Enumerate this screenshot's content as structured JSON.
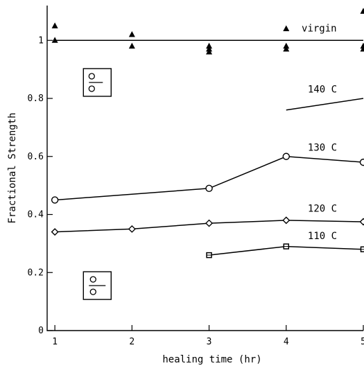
{
  "chart_data": {
    "type": "line",
    "title": "",
    "xlabel": "healing time (hr)",
    "ylabel": "Fractional Strength",
    "xlim": [
      0.9,
      5.0
    ],
    "ylim": [
      0,
      1.12
    ],
    "xticks": [
      1,
      2,
      3,
      4,
      5
    ],
    "yticks": [
      {
        "value": 0,
        "label": "0"
      },
      {
        "value": 0.2,
        "label": "0.2"
      },
      {
        "value": 0.4,
        "label": "0.4"
      },
      {
        "value": 0.6,
        "label": "0.6"
      },
      {
        "value": 0.8,
        "label": "0.8"
      },
      {
        "value": 1.0,
        "label": "1"
      }
    ],
    "grid": false,
    "series": [
      {
        "name": "virgin",
        "marker": "triangle",
        "line": {
          "x": [
            1,
            5
          ],
          "y": [
            1.0,
            1.0
          ]
        },
        "points": [
          {
            "x": 1,
            "y": 1.05
          },
          {
            "x": 1,
            "y": 1.0
          },
          {
            "x": 2,
            "y": 1.02
          },
          {
            "x": 2,
            "y": 0.98
          },
          {
            "x": 3,
            "y": 0.98
          },
          {
            "x": 3,
            "y": 0.97
          },
          {
            "x": 3,
            "y": 0.96
          },
          {
            "x": 4,
            "y": 1.04
          },
          {
            "x": 4,
            "y": 0.98
          },
          {
            "x": 4,
            "y": 0.97
          },
          {
            "x": 5,
            "y": 1.1
          },
          {
            "x": 5,
            "y": 0.98
          },
          {
            "x": 5,
            "y": 0.97
          }
        ]
      },
      {
        "name": "140 C",
        "marker": "none",
        "line": {
          "x": [
            4,
            5
          ],
          "y": [
            0.76,
            0.8
          ]
        },
        "points": []
      },
      {
        "name": "130 C",
        "marker": "circle",
        "line": {
          "x": [
            1,
            3,
            4,
            5
          ],
          "y": [
            0.45,
            0.49,
            0.6,
            0.58
          ]
        },
        "points": [
          {
            "x": 1,
            "y": 0.45
          },
          {
            "x": 3,
            "y": 0.49
          },
          {
            "x": 4,
            "y": 0.6
          },
          {
            "x": 5,
            "y": 0.58
          }
        ]
      },
      {
        "name": "120 C",
        "marker": "diamond",
        "line": {
          "x": [
            1,
            2,
            3,
            4,
            5
          ],
          "y": [
            0.34,
            0.35,
            0.37,
            0.38,
            0.375
          ]
        },
        "points": [
          {
            "x": 1,
            "y": 0.34
          },
          {
            "x": 2,
            "y": 0.35
          },
          {
            "x": 3,
            "y": 0.37
          },
          {
            "x": 4,
            "y": 0.38
          },
          {
            "x": 5,
            "y": 0.375
          }
        ]
      },
      {
        "name": "110 C",
        "marker": "square",
        "line": {
          "x": [
            3,
            4,
            5
          ],
          "y": [
            0.26,
            0.29,
            0.28
          ]
        },
        "points": [
          {
            "x": 3,
            "y": 0.26
          },
          {
            "x": 4,
            "y": 0.29
          },
          {
            "x": 5,
            "y": 0.28
          }
        ]
      }
    ],
    "series_labels": [
      {
        "series": "virgin",
        "x": 4.2,
        "y": 1.03
      },
      {
        "series": "140 C",
        "x": 4.28,
        "y": 0.82
      },
      {
        "series": "130 C",
        "x": 4.28,
        "y": 0.62
      },
      {
        "series": "120 C",
        "x": 4.28,
        "y": 0.41
      },
      {
        "series": "110 C",
        "x": 4.28,
        "y": 0.315
      }
    ],
    "insets": [
      {
        "name": "inset-upper",
        "x": 1.55,
        "y": 0.855,
        "style": "circles-left-of-divider"
      },
      {
        "name": "inset-lower",
        "x": 1.55,
        "y": 0.155,
        "style": "circles-centered"
      }
    ]
  }
}
